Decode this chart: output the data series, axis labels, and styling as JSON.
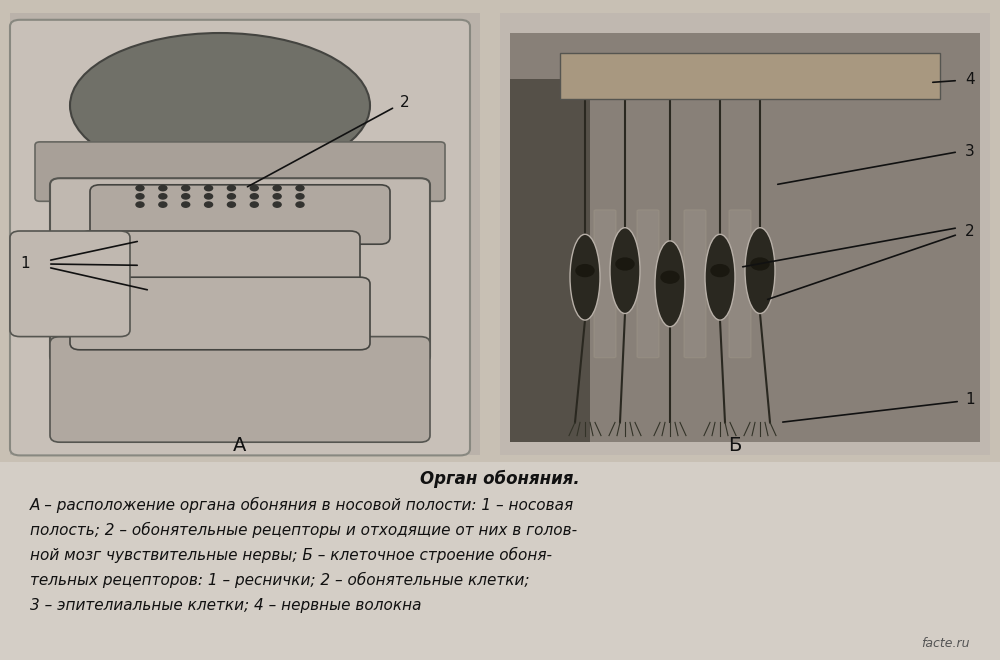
{
  "background_color": "#c8c0b4",
  "fig_width": 10.0,
  "fig_height": 6.6,
  "title_text": "Орган обоняния.",
  "title_bold": true,
  "title_italic": true,
  "caption_lines": [
    "А – расположение органа обоняния в носовой полости: 1 – носовая",
    "полость; 2 – обонятельные рецепторы и отходящие от них в голов-",
    "ной мозг чувствительные нервы; Б – клеточное строение обоня-",
    "тельных рецепторов: 1 – реснички; 2 – обонятельные клетки;",
    "3 – эпителиальные клетки; 4 – нервные волокна"
  ],
  "label_A": "А",
  "label_B": "Б",
  "text_bg_color": "#d4cec6",
  "panel_A_bg": "#bab2aa",
  "panel_B_bg": "#888078",
  "font_size_caption": 11,
  "font_size_title": 12,
  "font_size_label": 14,
  "watermark": "facte.ru",
  "anno_color": "#111111",
  "line_width": 1.2,
  "cell_dark": "#2a2820",
  "cell_light": "#b8b0a8",
  "epi_face": "#989088",
  "epi_edge": "#a09888",
  "nerve_layer_face": "#a89880",
  "left_block_face": "#555048"
}
